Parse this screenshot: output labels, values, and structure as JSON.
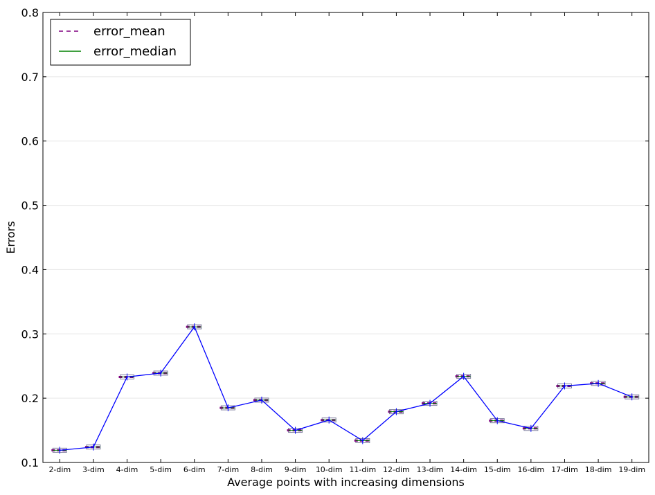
{
  "chart_data": {
    "type": "line",
    "xlabel": "Average points with increasing dimensions",
    "ylabel": "Errors",
    "ylim": [
      0.1,
      0.8
    ],
    "yticks": [
      "0.1",
      "0.2",
      "0.3",
      "0.4",
      "0.5",
      "0.6",
      "0.7",
      "0.8"
    ],
    "categories": [
      "2-dim",
      "3-dim",
      "4-dim",
      "5-dim",
      "6-dim",
      "7-dim",
      "8-dim",
      "9-dim",
      "10-dim",
      "11-dim",
      "12-dim",
      "13-dim",
      "14-dim",
      "15-dim",
      "16-dim",
      "17-dim",
      "18-dim",
      "19-dim"
    ],
    "series": [
      {
        "values": [
          0.119,
          0.124,
          0.233,
          0.239,
          0.311,
          0.185,
          0.197,
          0.15,
          0.166,
          0.134,
          0.179,
          0.192,
          0.234,
          0.165,
          0.153,
          0.219,
          0.223,
          0.202
        ]
      }
    ],
    "legend": {
      "position": "top-left",
      "entries": [
        {
          "label": "error_mean",
          "style": "dashed",
          "color": "#800080"
        },
        {
          "label": "error_median",
          "style": "solid",
          "color": "#008000"
        }
      ]
    },
    "grid": true,
    "colors": {
      "line": "#0000ff",
      "mean": "#800080",
      "median": "#008000",
      "box": "#7f7f9f"
    }
  }
}
